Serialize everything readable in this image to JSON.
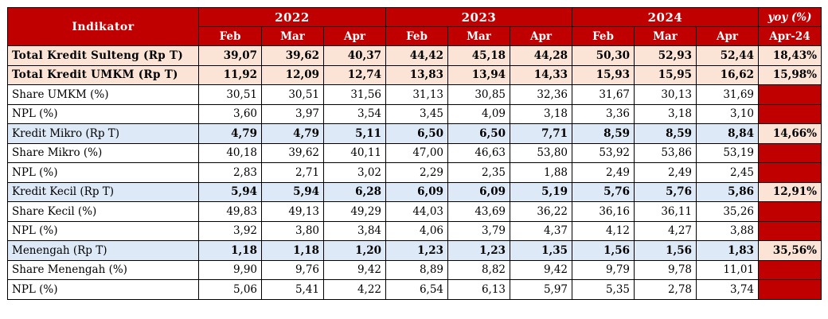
{
  "header": {
    "indicator_label": "Indikator",
    "years": [
      "2022",
      "2023",
      "2024"
    ],
    "yoy_label": "yoy (%)",
    "months": [
      "Feb",
      "Mar",
      "Apr",
      "Feb",
      "Mar",
      "Apr",
      "Feb",
      "Mar",
      "Apr"
    ],
    "yoy_month": "Apr-24"
  },
  "rows": [
    {
      "label": "Total Kredit Sulteng (Rp T)",
      "values": [
        "39,07",
        "39,62",
        "40,37",
        "44,42",
        "45,18",
        "44,28",
        "50,30",
        "52,93",
        "52,44"
      ],
      "yoy": "18,43%"
    },
    {
      "label": "Total Kredit UMKM (Rp T)",
      "values": [
        "11,92",
        "12,09",
        "12,74",
        "13,83",
        "13,94",
        "14,33",
        "15,93",
        "15,95",
        "16,62"
      ],
      "yoy": "15,98%"
    },
    {
      "label": "Share UMKM (%)",
      "values": [
        "30,51",
        "30,51",
        "31,56",
        "31,13",
        "30,85",
        "32,36",
        "31,67",
        "30,13",
        "31,69"
      ],
      "yoy": ""
    },
    {
      "label": "NPL (%)",
      "values": [
        "3,60",
        "3,97",
        "3,54",
        "3,45",
        "4,09",
        "3,18",
        "3,36",
        "3,18",
        "3,10"
      ],
      "yoy": ""
    },
    {
      "label": "Kredit Mikro (Rp T)",
      "values": [
        "4,79",
        "4,79",
        "5,11",
        "6,50",
        "6,50",
        "7,71",
        "8,59",
        "8,59",
        "8,84"
      ],
      "yoy": "14,66%"
    },
    {
      "label": "Share Mikro (%)",
      "values": [
        "40,18",
        "39,62",
        "40,11",
        "47,00",
        "46,63",
        "53,80",
        "53,92",
        "53,86",
        "53,19"
      ],
      "yoy": ""
    },
    {
      "label": "NPL (%)",
      "values": [
        "2,83",
        "2,71",
        "3,02",
        "2,29",
        "2,35",
        "1,88",
        "2,49",
        "2,49",
        "2,45"
      ],
      "yoy": ""
    },
    {
      "label": "Kredit Kecil (Rp T)",
      "values": [
        "5,94",
        "5,94",
        "6,28",
        "6,09",
        "6,09",
        "5,19",
        "5,76",
        "5,76",
        "5,86"
      ],
      "yoy": "12,91%"
    },
    {
      "label": "Share Kecil (%)",
      "values": [
        "49,83",
        "49,13",
        "49,29",
        "44,03",
        "43,69",
        "36,22",
        "36,16",
        "36,11",
        "35,26"
      ],
      "yoy": ""
    },
    {
      "label": "NPL (%)",
      "values": [
        "3,92",
        "3,80",
        "3,84",
        "4,06",
        "3,79",
        "4,37",
        "4,12",
        "4,27",
        "3,88"
      ],
      "yoy": ""
    },
    {
      "label": "Menengah (Rp T)",
      "values": [
        "1,18",
        "1,18",
        "1,20",
        "1,23",
        "1,23",
        "1,35",
        "1,56",
        "1,56",
        "1,83"
      ],
      "yoy": "35,56%"
    },
    {
      "label": "Share Menengah (%)",
      "values": [
        "9,90",
        "9,76",
        "9,42",
        "8,89",
        "8,82",
        "9,42",
        "9,79",
        "9,78",
        "11,01"
      ],
      "yoy": ""
    },
    {
      "label": "NPL (%)",
      "values": [
        "5,06",
        "5,41",
        "4,22",
        "6,54",
        "6,13",
        "5,97",
        "5,35",
        "2,78",
        "3,74"
      ],
      "yoy": ""
    }
  ],
  "colors": {
    "header_red": "#c00000",
    "total_peach": "#fbe4d6",
    "sub_blue": "#dde9f6"
  }
}
